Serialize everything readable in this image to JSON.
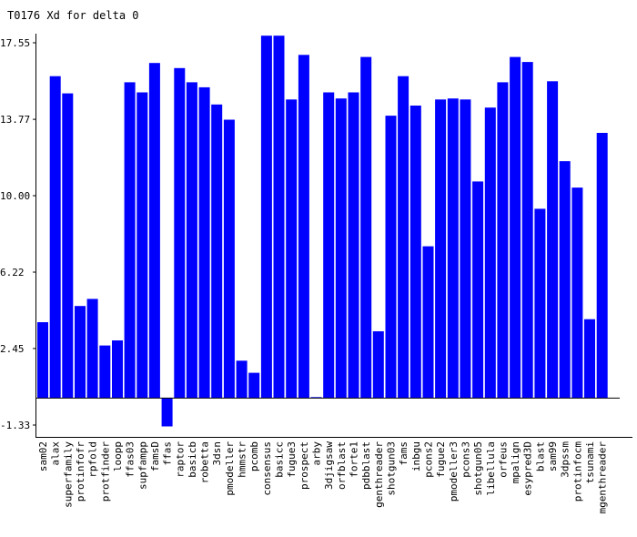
{
  "chart_data": {
    "type": "bar",
    "title": "T0176 Xd for delta 0",
    "xlabel": "",
    "ylabel": "",
    "ylim": [
      -1.33,
      17.55
    ],
    "yticks": [
      "-1.33",
      "2.45",
      "6.22",
      "10.00",
      "13.77",
      "17.55"
    ],
    "grid": false,
    "bar_color": "#0000ff",
    "categories": [
      "sam02",
      "alax",
      "superfamily",
      "protinfofr",
      "rpfold",
      "protfinder",
      "loopp",
      "ffas03",
      "supfampp",
      "famsD",
      "ffas",
      "raptor",
      "basicb",
      "robetta",
      "3dsn",
      "pmodeller",
      "hmmstr",
      "pcomb",
      "consensus",
      "basicc",
      "fugue3",
      "prospect",
      "arby",
      "3djigsaw",
      "orfblast",
      "forte1",
      "pdbblast",
      "genthreader",
      "shotgun03",
      "fams",
      "inbgu",
      "pcons2",
      "fugue2",
      "pmodeller3",
      "pcons3",
      "shotgun05",
      "libellula",
      "orfeus",
      "mpalign",
      "esypred3D",
      "blast",
      "sam99",
      "3dpssm",
      "protinfocm",
      "tsunami",
      "mgenthreader"
    ],
    "values": [
      3.75,
      15.9,
      15.05,
      4.55,
      4.9,
      2.6,
      2.85,
      15.6,
      15.1,
      16.55,
      -1.4,
      16.3,
      15.6,
      15.35,
      14.5,
      13.75,
      1.85,
      1.25,
      17.9,
      17.9,
      14.75,
      16.95,
      0.05,
      15.1,
      14.8,
      15.1,
      16.85,
      3.3,
      13.95,
      15.9,
      14.45,
      7.5,
      14.75,
      14.8,
      14.75,
      10.7,
      14.35,
      15.6,
      16.85,
      16.6,
      9.35,
      15.65,
      11.7,
      10.4,
      3.9,
      13.1
    ]
  }
}
